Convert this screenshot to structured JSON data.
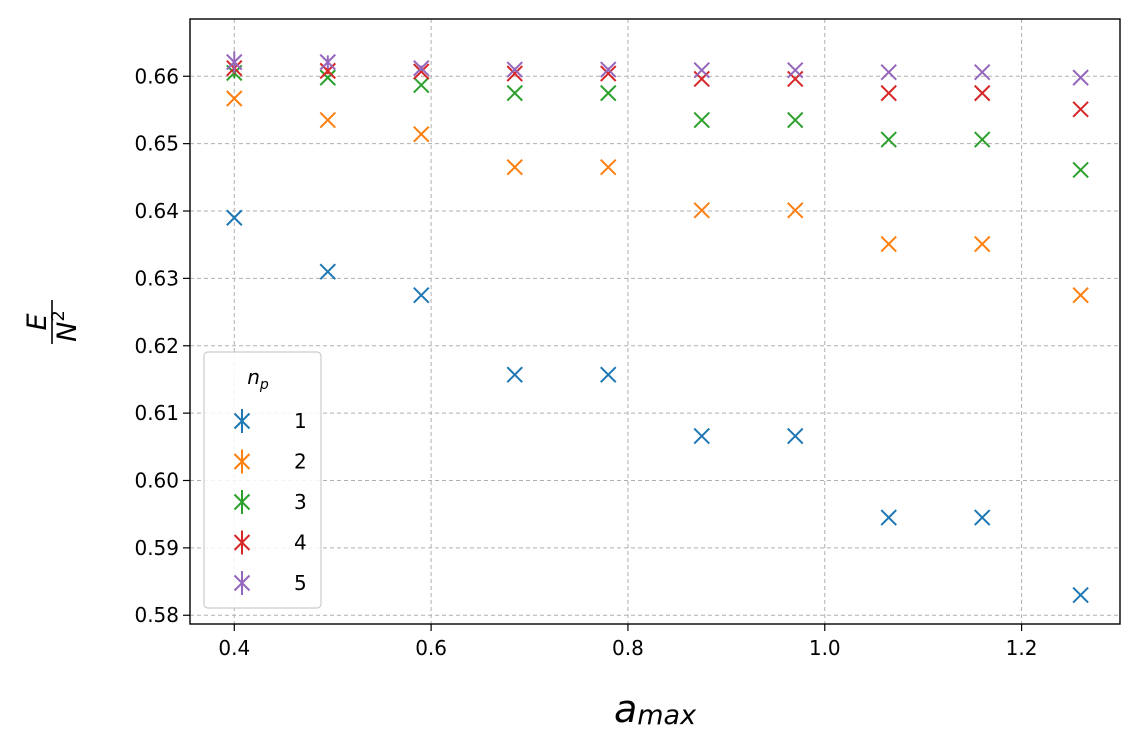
{
  "chart_data": {
    "type": "scatter",
    "title": "",
    "xlabel": "a",
    "xlabel_subscript": "max",
    "ylabel_numerator": "E",
    "ylabel_denominator": "N",
    "ylabel_exponent": "2",
    "xlim": [
      0.355,
      1.3
    ],
    "ylim": [
      0.5787,
      0.6685
    ],
    "grid": true,
    "x_ticks": [
      0.4,
      0.6,
      0.8,
      1.0,
      1.2
    ],
    "x_tick_labels": [
      "0.4",
      "0.6",
      "0.8",
      "1.0",
      "1.2"
    ],
    "y_ticks": [
      0.58,
      0.59,
      0.6,
      0.61,
      0.62,
      0.63,
      0.64,
      0.65,
      0.66
    ],
    "y_tick_labels": [
      "0.58",
      "0.59",
      "0.60",
      "0.61",
      "0.62",
      "0.63",
      "0.64",
      "0.65",
      "0.66"
    ],
    "x": [
      0.4,
      0.495,
      0.59,
      0.685,
      0.78,
      0.875,
      0.97,
      1.065,
      1.16,
      1.26
    ],
    "marker": "x",
    "legend": {
      "title": "n",
      "title_subscript": "p",
      "placement": "lower-left"
    },
    "series": [
      {
        "name": "1",
        "color": "#1f77b4",
        "values": [
          0.639,
          0.631,
          0.6275,
          0.6157,
          0.6157,
          0.6066,
          0.6066,
          0.5945,
          0.5945,
          0.583
        ],
        "errors": [
          0,
          0,
          0,
          0,
          0,
          0,
          0,
          0,
          0,
          0
        ]
      },
      {
        "name": "2",
        "color": "#ff7f0e",
        "values": [
          0.6567,
          0.6535,
          0.6514,
          0.6465,
          0.6465,
          0.6401,
          0.6401,
          0.6351,
          0.6351,
          0.6275
        ],
        "errors": [
          0,
          0,
          0,
          0,
          0,
          0,
          0,
          0,
          0,
          0
        ]
      },
      {
        "name": "3",
        "color": "#2ca02c",
        "values": [
          0.6605,
          0.6598,
          0.6587,
          0.6575,
          0.6575,
          0.6535,
          0.6535,
          0.6506,
          0.6506,
          0.6461
        ],
        "errors": [
          0.0008,
          0,
          0,
          0,
          0,
          0,
          0,
          0,
          0,
          0
        ]
      },
      {
        "name": "4",
        "color": "#d62728",
        "values": [
          0.6612,
          0.6608,
          0.6607,
          0.6604,
          0.6604,
          0.6596,
          0.6596,
          0.6575,
          0.6575,
          0.6551
        ],
        "errors": [
          0.0009,
          0.0005,
          0,
          0,
          0,
          0,
          0,
          0,
          0,
          0
        ]
      },
      {
        "name": "5",
        "color": "#9467bd",
        "values": [
          0.6621,
          0.6621,
          0.6612,
          0.661,
          0.661,
          0.6609,
          0.6609,
          0.6606,
          0.6606,
          0.6598
        ],
        "errors": [
          0.0016,
          0.001,
          0.0004,
          0.0003,
          0.0003,
          0,
          0,
          0,
          0,
          0
        ]
      }
    ]
  }
}
